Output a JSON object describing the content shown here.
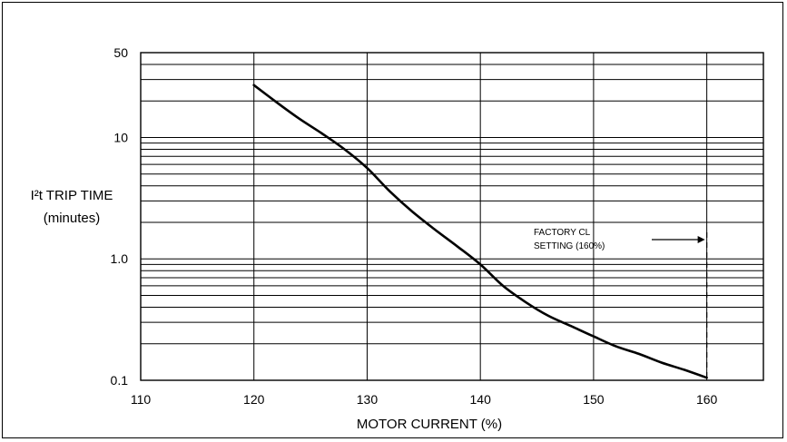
{
  "chart_data": {
    "type": "line",
    "xlabel": "MOTOR CURRENT (%)",
    "ylabel_line1": "I²t TRIP TIME",
    "ylabel_line2": "(minutes)",
    "y_scale": "log",
    "xlim": [
      110,
      165
    ],
    "ylim": [
      0.1,
      50
    ],
    "x_ticks": [
      110,
      120,
      130,
      140,
      150,
      160
    ],
    "x_tick_labels": [
      "110",
      "120",
      "130",
      "140",
      "150",
      "160"
    ],
    "y_tick_values": [
      50,
      10,
      1.0,
      0.1
    ],
    "y_tick_labels": [
      "50",
      "10",
      "1.0",
      "0.1"
    ],
    "y_gridlines": [
      0.2,
      0.3,
      0.4,
      0.5,
      0.6,
      0.7,
      0.8,
      0.9,
      1,
      2,
      3,
      4,
      5,
      6,
      7,
      8,
      9,
      10,
      20,
      30,
      40,
      50
    ],
    "grid": true,
    "series": [
      {
        "x": [
          120,
          122,
          124,
          126,
          128,
          130,
          132,
          134,
          136,
          138,
          140,
          142,
          144,
          146,
          148,
          150,
          152,
          154,
          156,
          158,
          160
        ],
        "y": [
          27,
          19.5,
          14.3,
          10.8,
          8.0,
          5.6,
          3.6,
          2.45,
          1.74,
          1.26,
          0.9,
          0.6,
          0.44,
          0.34,
          0.28,
          0.23,
          0.19,
          0.165,
          0.14,
          0.122,
          0.105
        ]
      }
    ],
    "annotations": {
      "line1": "FACTORY CL",
      "line2": "SETTING (160%)",
      "marker_x": 160
    },
    "colors": {
      "line": "#000000",
      "grid": "#000000"
    }
  }
}
